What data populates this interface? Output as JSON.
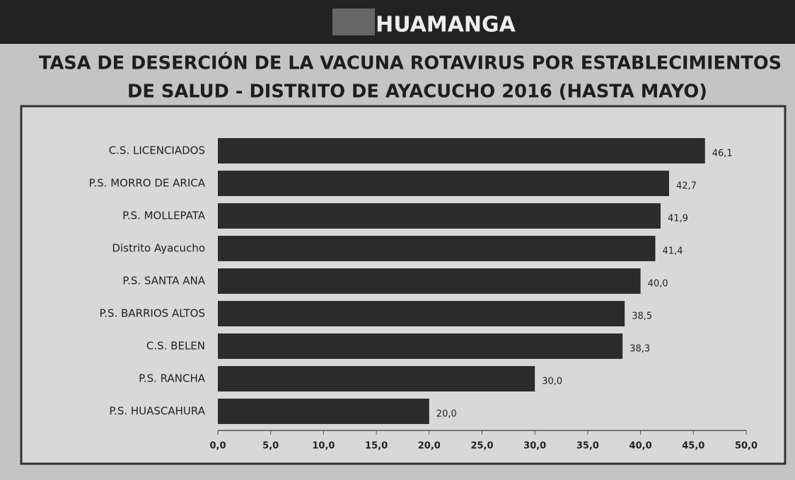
{
  "header": "HUAMANGA",
  "chart_data": {
    "type": "bar",
    "orientation": "horizontal",
    "title": [
      "TASA DE DESERCIÓN DE LA VACUNA ROTAVIRUS POR ESTABLECIMIENTOS",
      "DE SALUD - DISTRITO DE AYACUCHO 2016 (HASTA MAYO)"
    ],
    "categories": [
      "C.S. LICENCIADOS",
      "P.S. MORRO DE ARICA",
      "P.S. MOLLEPATA",
      "Distrito Ayacucho",
      "P.S. SANTA ANA",
      "P.S. BARRIOS ALTOS",
      "C.S. BELEN",
      "P.S. RANCHA",
      "P.S. HUASCAHURA"
    ],
    "values": [
      46.1,
      42.7,
      41.9,
      41.4,
      40.0,
      38.5,
      38.3,
      30.0,
      20.0
    ],
    "value_labels": [
      "46,1",
      "42,7",
      "41,9",
      "41,4",
      "40,0",
      "38,5",
      "38,3",
      "30,0",
      "20,0"
    ],
    "color": "#2b2b2b",
    "xlim": [
      0,
      50
    ],
    "xticks": [
      {
        "value": 0,
        "label": "0,0"
      },
      {
        "value": 5,
        "label": "5,0"
      },
      {
        "value": 10,
        "label": "10,0"
      },
      {
        "value": 15,
        "label": "15,0"
      },
      {
        "value": 20,
        "label": "20,0"
      },
      {
        "value": 25,
        "label": "25,0"
      },
      {
        "value": 30,
        "label": "30,0"
      },
      {
        "value": 35,
        "label": "35,0"
      },
      {
        "value": 40,
        "label": "40,0"
      },
      {
        "value": 45,
        "label": "45,0"
      },
      {
        "value": 50,
        "label": "50,0"
      }
    ],
    "grid": false
  }
}
